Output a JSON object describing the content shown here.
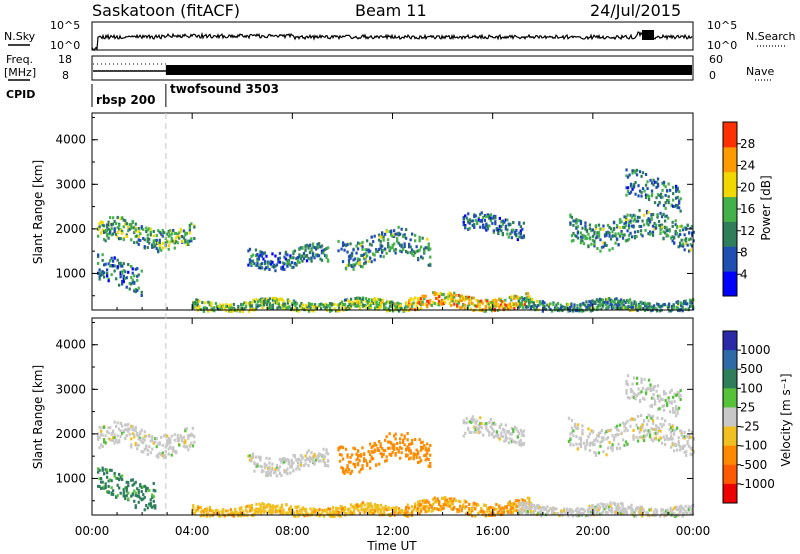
{
  "header": {
    "station": "Saskatoon (fitACF)",
    "beam": "Beam 11",
    "date": "24/Jul/2015"
  },
  "top_panels": {
    "nsky_label": "N.Sky",
    "nsearch_label": "N.Search",
    "freq_label_1": "Freq.",
    "freq_label_2": "[MHz]",
    "nave_label": "Nave",
    "cpid_label": "CPID",
    "noise_ticks_left": [
      "10^5",
      "10^0"
    ],
    "noise_ticks_right": [
      "10^5",
      "10^0"
    ],
    "freq_ticks": [
      "18",
      "8"
    ],
    "nave_ticks": [
      "60",
      "0"
    ],
    "cpid_segments": [
      {
        "name": "rbsp 200",
        "start_hour": 0.0,
        "end_hour": 2.95
      },
      {
        "name": "twofsound 3503",
        "start_hour": 2.95,
        "end_hour": 24.0
      }
    ]
  },
  "axes": {
    "y_label": "Slant Range [km]",
    "x_label": "Time UT",
    "x_ticks": [
      "00:00",
      "04:00",
      "08:00",
      "12:00",
      "16:00",
      "20:00",
      "00:00"
    ],
    "y_ticks": [
      "1000",
      "2000",
      "3000",
      "4000"
    ]
  },
  "power_colorbar": {
    "label": "Power [dB]",
    "ticks": [
      "28",
      "24",
      "20",
      "16",
      "12",
      "8",
      "4"
    ],
    "colors": [
      "#0000ff",
      "#1f4fb0",
      "#2e7d5b",
      "#44b04a",
      "#f0d800",
      "#ff9a00",
      "#ff3000"
    ]
  },
  "velocity_colorbar": {
    "label": "Velocity [m s⁻¹]",
    "ticks": [
      "1000",
      "500",
      "100",
      "25",
      "-25",
      "-100",
      "-500",
      "-1000"
    ],
    "colors": [
      "#2a2aa8",
      "#2f6aa8",
      "#2e7d5b",
      "#55c23a",
      "#c8c8c8",
      "#f0c020",
      "#ff8a00",
      "#ff5a00",
      "#ee0000"
    ]
  },
  "chart_data": [
    {
      "type": "heatmap",
      "title": "Power",
      "xlabel": "Time UT",
      "ylabel": "Slant Range [km]",
      "xlim": [
        0,
        24
      ],
      "ylim": [
        180,
        4600
      ],
      "colorbar": {
        "label": "Power [dB]",
        "range": [
          0,
          32
        ]
      },
      "echo_regions": [
        {
          "t_start": 0.2,
          "t_end": 4.1,
          "r_center": 1900,
          "r_halfwidth": 250,
          "value": 14
        },
        {
          "t_start": 0.2,
          "t_end": 2.0,
          "r_center": 1000,
          "r_halfwidth": 300,
          "value": 10
        },
        {
          "t_start": 4.0,
          "t_end": 12.5,
          "r_center": 300,
          "r_halfwidth": 120,
          "value": 16
        },
        {
          "t_start": 12.5,
          "t_end": 17.5,
          "r_center": 380,
          "r_halfwidth": 150,
          "value": 22
        },
        {
          "t_start": 17.0,
          "t_end": 24.0,
          "r_center": 300,
          "r_halfwidth": 120,
          "value": 12
        },
        {
          "t_start": 6.2,
          "t_end": 9.4,
          "r_center": 1400,
          "r_halfwidth": 200,
          "value": 10
        },
        {
          "t_start": 9.8,
          "t_end": 13.5,
          "r_center": 1600,
          "r_halfwidth": 300,
          "value": 12
        },
        {
          "t_start": 14.8,
          "t_end": 17.2,
          "r_center": 2100,
          "r_halfwidth": 200,
          "value": 10
        },
        {
          "t_start": 19.0,
          "t_end": 24.0,
          "r_center": 2000,
          "r_halfwidth": 300,
          "value": 12
        },
        {
          "t_start": 21.3,
          "t_end": 23.5,
          "r_center": 2900,
          "r_halfwidth": 300,
          "value": 10
        }
      ]
    },
    {
      "type": "heatmap",
      "title": "Velocity",
      "xlabel": "Time UT",
      "ylabel": "Slant Range [km]",
      "xlim": [
        0,
        24
      ],
      "ylim": [
        180,
        4600
      ],
      "colorbar": {
        "label": "Velocity [m s⁻¹]",
        "range": [
          -1000,
          1000
        ]
      },
      "echo_regions": [
        {
          "t_start": 0.2,
          "t_end": 4.1,
          "r_center": 1900,
          "r_halfwidth": 250,
          "value": 0
        },
        {
          "t_start": 0.2,
          "t_end": 2.5,
          "r_center": 800,
          "r_halfwidth": 300,
          "value": 120
        },
        {
          "t_start": 4.0,
          "t_end": 12.5,
          "r_center": 300,
          "r_halfwidth": 120,
          "value": -80
        },
        {
          "t_start": 12.5,
          "t_end": 17.5,
          "r_center": 380,
          "r_halfwidth": 150,
          "value": -100
        },
        {
          "t_start": 17.0,
          "t_end": 24.0,
          "r_center": 300,
          "r_halfwidth": 120,
          "value": 0
        },
        {
          "t_start": 6.2,
          "t_end": 9.4,
          "r_center": 1400,
          "r_halfwidth": 200,
          "value": 0
        },
        {
          "t_start": 9.8,
          "t_end": 13.5,
          "r_center": 1600,
          "r_halfwidth": 300,
          "value": -400
        },
        {
          "t_start": 14.8,
          "t_end": 17.2,
          "r_center": 2100,
          "r_halfwidth": 200,
          "value": 0
        },
        {
          "t_start": 19.0,
          "t_end": 24.0,
          "r_center": 2000,
          "r_halfwidth": 300,
          "value": 0
        },
        {
          "t_start": 21.3,
          "t_end": 23.5,
          "r_center": 2900,
          "r_halfwidth": 300,
          "value": 10
        }
      ]
    }
  ]
}
